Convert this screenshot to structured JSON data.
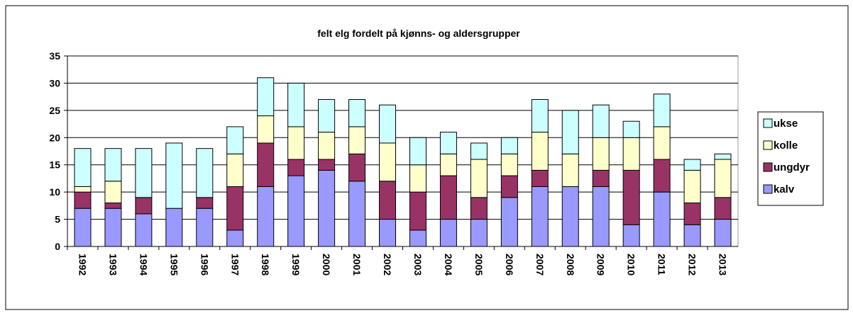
{
  "chart_data": {
    "type": "stacked_bar",
    "title": "felt elg fordelt på kjønns- og aldersgrupper",
    "categories": [
      "1992",
      "1993",
      "1994",
      "1995",
      "1996",
      "1997",
      "1998",
      "1999",
      "2000",
      "2001",
      "2002",
      "2003",
      "2004",
      "2005",
      "2006",
      "2007",
      "2008",
      "2009",
      "2010",
      "2011",
      "2012",
      "2013"
    ],
    "series": [
      {
        "name": "kalv",
        "color": "#9999ff",
        "values": [
          7,
          7,
          6,
          7,
          7,
          3,
          11,
          13,
          14,
          12,
          5,
          3,
          5,
          5,
          9,
          11,
          11,
          11,
          4,
          10,
          4,
          5
        ]
      },
      {
        "name": "ungdyr",
        "color": "#993366",
        "values": [
          3,
          1,
          3,
          0,
          2,
          8,
          8,
          3,
          2,
          5,
          7,
          7,
          8,
          4,
          4,
          3,
          0,
          3,
          10,
          6,
          4,
          4
        ]
      },
      {
        "name": "kolle",
        "color": "#ffffcc",
        "values": [
          1,
          4,
          0,
          0,
          0,
          6,
          5,
          6,
          5,
          5,
          7,
          5,
          4,
          7,
          4,
          7,
          6,
          6,
          6,
          6,
          6,
          7
        ]
      },
      {
        "name": "ukse",
        "color": "#ccffff",
        "values": [
          7,
          6,
          9,
          12,
          9,
          5,
          7,
          8,
          6,
          5,
          7,
          5,
          4,
          3,
          3,
          6,
          8,
          6,
          3,
          6,
          2,
          1
        ]
      }
    ],
    "ylim": [
      0,
      35
    ],
    "yticks": [
      0,
      5,
      10,
      15,
      20,
      25,
      30,
      35
    ],
    "grid": true,
    "legend": "right"
  }
}
